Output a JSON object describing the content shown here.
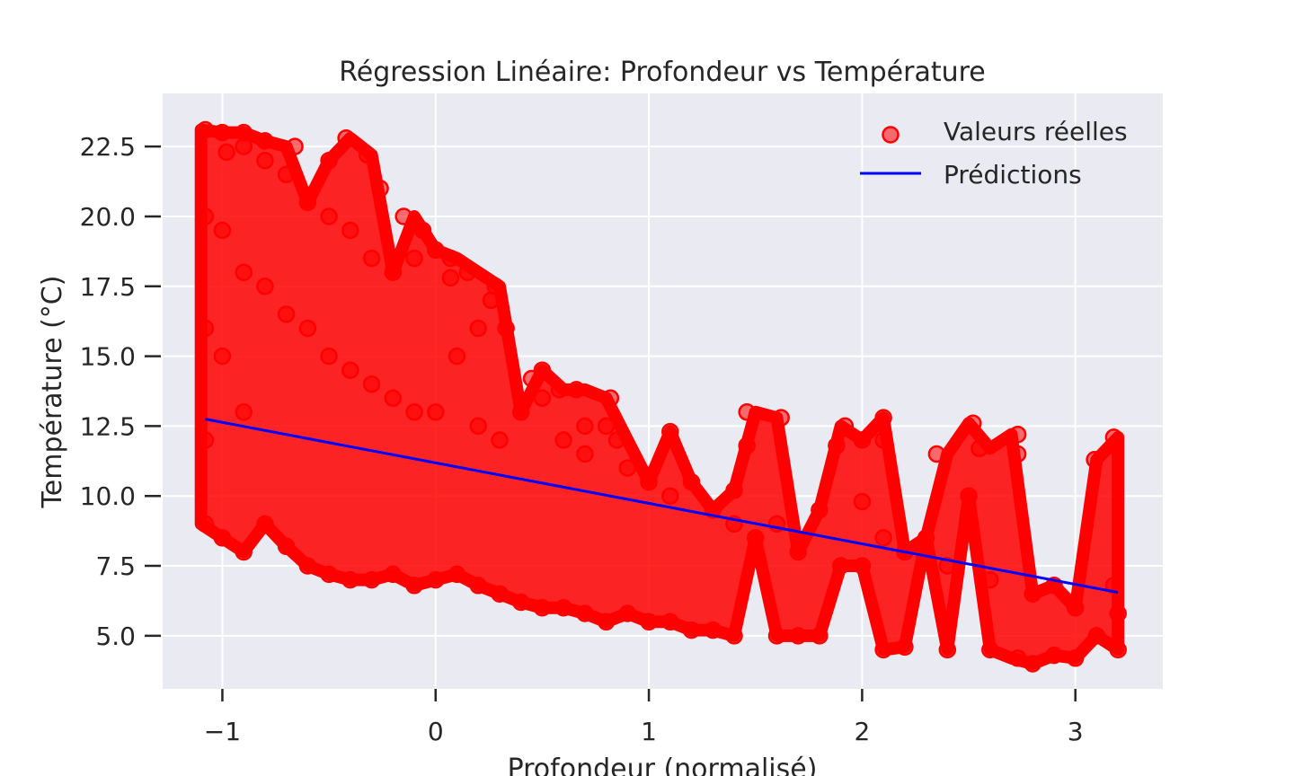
{
  "chart_data": {
    "type": "scatter",
    "title": "Régression Linéaire: Profondeur vs Température",
    "xlabel": "Profondeur (normalisé)",
    "ylabel": "Température (°C)",
    "xlim": [
      -1.28,
      3.41
    ],
    "ylim": [
      3.1,
      24.4
    ],
    "xticks": [
      -1,
      0,
      1,
      2,
      3
    ],
    "xtick_labels": [
      "−1",
      "0",
      "1",
      "2",
      "3"
    ],
    "yticks": [
      5.0,
      7.5,
      10.0,
      12.5,
      15.0,
      17.5,
      20.0,
      22.5
    ],
    "ytick_labels": [
      "5.0",
      "7.5",
      "10.0",
      "12.5",
      "15.0",
      "17.5",
      "20.0",
      "22.5"
    ],
    "grid": true,
    "legend_position": "top-right",
    "legend": [
      "Valeurs réelles",
      "Prédictions"
    ],
    "colors": {
      "points": "#ff0000",
      "line": "#0000ff",
      "plot_bg": "#eaeaf2",
      "grid": "#ffffff"
    },
    "series": [
      {
        "name": "Valeurs réelles",
        "kind": "scatter",
        "x": [
          -1.08,
          -1.08,
          -1.08,
          -1.08,
          -1.08,
          -1.0,
          -1.0,
          -1.0,
          -1.0,
          -0.9,
          -0.9,
          -0.9,
          -0.9,
          -0.8,
          -0.8,
          -0.8,
          -0.7,
          -0.7,
          -0.7,
          -0.6,
          -0.6,
          -0.6,
          -0.5,
          -0.5,
          -0.5,
          -0.4,
          -0.4,
          -0.4,
          -0.3,
          -0.3,
          -0.3,
          -0.2,
          -0.2,
          -0.2,
          -0.1,
          -0.1,
          -0.1,
          0.0,
          0.0,
          0.0,
          0.07,
          0.1,
          0.1,
          0.2,
          0.2,
          0.2,
          0.28,
          0.3,
          0.3,
          0.4,
          0.4,
          0.45,
          0.5,
          0.5,
          0.6,
          0.6,
          0.66,
          0.7,
          0.7,
          0.8,
          0.8,
          0.82,
          0.9,
          0.9,
          1.0,
          1.0,
          1.1,
          1.1,
          1.1,
          1.2,
          1.2,
          1.3,
          1.3,
          1.4,
          1.4,
          1.46,
          1.46,
          1.5,
          1.6,
          1.6,
          1.7,
          1.7,
          1.8,
          1.8,
          1.9,
          1.92,
          2.0,
          2.0,
          2.1,
          2.1,
          2.1,
          2.2,
          2.2,
          2.3,
          2.35,
          2.4,
          2.4,
          2.52,
          2.55,
          2.6,
          2.6,
          2.73,
          2.73,
          2.73,
          2.8,
          2.8,
          2.9,
          2.9,
          3.0,
          3.0,
          3.09,
          3.1,
          3.2,
          3.2,
          3.18,
          -0.98,
          -0.9,
          -0.8,
          -0.66,
          -0.5,
          -0.42,
          -0.32,
          -0.26,
          -0.15,
          -0.06,
          0.07,
          0.15,
          0.26,
          0.33,
          0.5,
          0.58,
          0.7,
          0.85,
          1.4,
          1.62,
          1.88,
          2.0,
          2.1,
          2.5,
          3.18
        ],
        "y": [
          23.1,
          20.0,
          16.0,
          12.0,
          9.0,
          23.0,
          19.5,
          15.0,
          8.5,
          22.5,
          18.0,
          13.0,
          8.0,
          22.0,
          17.5,
          9.0,
          21.5,
          16.5,
          8.2,
          20.5,
          16.0,
          7.5,
          20.0,
          15.0,
          7.2,
          19.5,
          14.5,
          7.0,
          18.5,
          14.0,
          7.0,
          18.0,
          13.5,
          7.2,
          18.5,
          13.0,
          6.8,
          18.8,
          13.0,
          7.0,
          17.8,
          15.0,
          7.2,
          16.0,
          12.5,
          6.8,
          17.5,
          12.0,
          6.5,
          13.0,
          6.2,
          14.2,
          13.5,
          6.0,
          12.0,
          6.0,
          13.8,
          11.5,
          5.8,
          12.5,
          5.5,
          13.5,
          11.0,
          5.8,
          10.5,
          5.5,
          12.3,
          10.0,
          5.5,
          10.5,
          5.2,
          9.5,
          5.2,
          9.0,
          5.0,
          13.0,
          11.8,
          8.5,
          9.0,
          5.0,
          8.0,
          5.0,
          9.5,
          5.0,
          7.5,
          12.5,
          12.0,
          7.5,
          12.0,
          8.5,
          4.5,
          8.0,
          4.6,
          8.5,
          11.5,
          7.5,
          4.5,
          12.6,
          11.7,
          7.0,
          4.5,
          12.2,
          11.5,
          4.2,
          6.5,
          4.0,
          6.8,
          4.3,
          6.0,
          4.2,
          11.3,
          5.0,
          5.8,
          4.5,
          12.1,
          22.3,
          23.0,
          22.7,
          22.5,
          22.0,
          22.8,
          22.2,
          21.0,
          20.0,
          19.5,
          18.5,
          18.0,
          17.0,
          16.0,
          14.5,
          13.8,
          12.5,
          12.0,
          10.2,
          12.8,
          11.8,
          9.8,
          12.8,
          10.0,
          6.8
        ]
      },
      {
        "name": "Prédictions",
        "kind": "line",
        "x": [
          -1.08,
          3.2
        ],
        "y": [
          12.75,
          6.55
        ]
      }
    ]
  }
}
